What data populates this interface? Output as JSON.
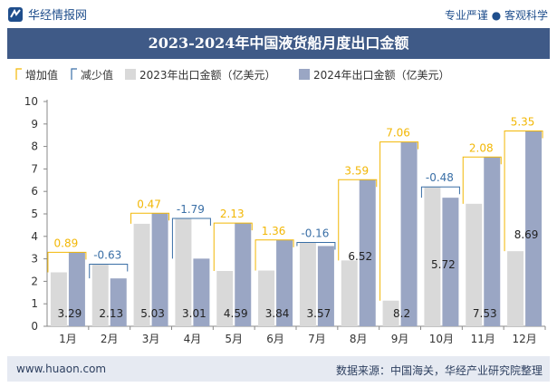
{
  "header": {
    "brand": "华经情报网",
    "tagline": "专业严谨 ● 客观科学",
    "title": "2023-2024年中国液货船月度出口金额"
  },
  "footer": {
    "url": "www.huaon.com",
    "source": "数据来源：中国海关，华经产业研究院整理"
  },
  "colors": {
    "bar2023": "#d9d9d9",
    "bar2024": "#9aa6c4",
    "increase": "#f2b705",
    "decrease": "#3a6fa6",
    "title_bg": "#3f5a87",
    "footer_bg": "#e6eaf2",
    "increase_label": "#f2b705",
    "decrease_label": "#3a6fa6"
  },
  "chart_data": {
    "type": "bar",
    "categories": [
      "1月",
      "2月",
      "3月",
      "4月",
      "5月",
      "6月",
      "7月",
      "8月",
      "9月",
      "10月",
      "11月",
      "12月"
    ],
    "series": [
      {
        "name": "2023年出口金额（亿美元）",
        "values": [
          2.4,
          2.76,
          4.56,
          4.8,
          2.46,
          2.48,
          3.73,
          2.93,
          1.14,
          6.2,
          5.45,
          3.34
        ]
      },
      {
        "name": "2024年出口金额（亿美元）",
        "values": [
          3.29,
          2.13,
          5.03,
          3.01,
          4.59,
          3.84,
          3.57,
          6.52,
          8.2,
          5.72,
          7.53,
          8.69
        ]
      }
    ],
    "changes": [
      {
        "label": "0.89",
        "direction": "increase"
      },
      {
        "label": "-0.63",
        "direction": "decrease"
      },
      {
        "label": "0.47",
        "direction": "increase"
      },
      {
        "label": "-1.79",
        "direction": "decrease"
      },
      {
        "label": "2.13",
        "direction": "increase"
      },
      {
        "label": "1.36",
        "direction": "increase"
      },
      {
        "label": "-0.16",
        "direction": "decrease"
      },
      {
        "label": "3.59",
        "direction": "increase"
      },
      {
        "label": "7.06",
        "direction": "increase"
      },
      {
        "label": "-0.48",
        "direction": "decrease"
      },
      {
        "label": "2.08",
        "direction": "increase"
      },
      {
        "label": "5.35",
        "direction": "increase"
      }
    ],
    "value_labels_2024": [
      "3.29",
      "2.13",
      "5.03",
      "3.01",
      "4.59",
      "3.84",
      "3.57",
      "6.52",
      "8.2",
      "5.72",
      "7.53",
      "8.69"
    ],
    "legend": [
      "增加值",
      "减少值",
      "2023年出口金额（亿美元）",
      "2024年出口金额（亿美元）"
    ],
    "legend_position": "top",
    "ylim": [
      0,
      10
    ],
    "yticks": [
      0,
      1,
      2,
      3,
      4,
      5,
      6,
      7,
      8,
      9,
      10
    ],
    "grid": false
  }
}
